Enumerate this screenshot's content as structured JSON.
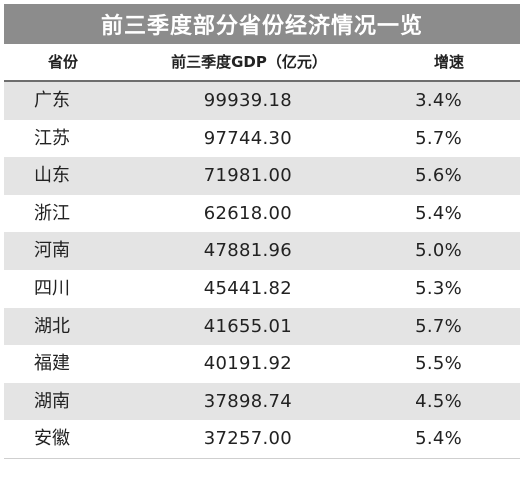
{
  "title": "前三季度部分省份经济情况一览",
  "headers": {
    "province": "省份",
    "gdp": "前三季度GDP（亿元）",
    "growth": "增速"
  },
  "rows": [
    {
      "province": "广东",
      "gdp": "99939.18",
      "growth": "3.4%"
    },
    {
      "province": "江苏",
      "gdp": "97744.30",
      "growth": "5.7%"
    },
    {
      "province": "山东",
      "gdp": "71981.00",
      "growth": "5.6%"
    },
    {
      "province": "浙江",
      "gdp": "62618.00",
      "growth": "5.4%"
    },
    {
      "province": "河南",
      "gdp": "47881.96",
      "growth": "5.0%"
    },
    {
      "province": "四川",
      "gdp": "45441.82",
      "growth": "5.3%"
    },
    {
      "province": "湖北",
      "gdp": "41655.01",
      "growth": "5.7%"
    },
    {
      "province": "福建",
      "gdp": "40191.92",
      "growth": "5.5%"
    },
    {
      "province": "湖南",
      "gdp": "37898.74",
      "growth": "4.5%"
    },
    {
      "province": "安徽",
      "gdp": "37257.00",
      "growth": "5.4%"
    }
  ]
}
